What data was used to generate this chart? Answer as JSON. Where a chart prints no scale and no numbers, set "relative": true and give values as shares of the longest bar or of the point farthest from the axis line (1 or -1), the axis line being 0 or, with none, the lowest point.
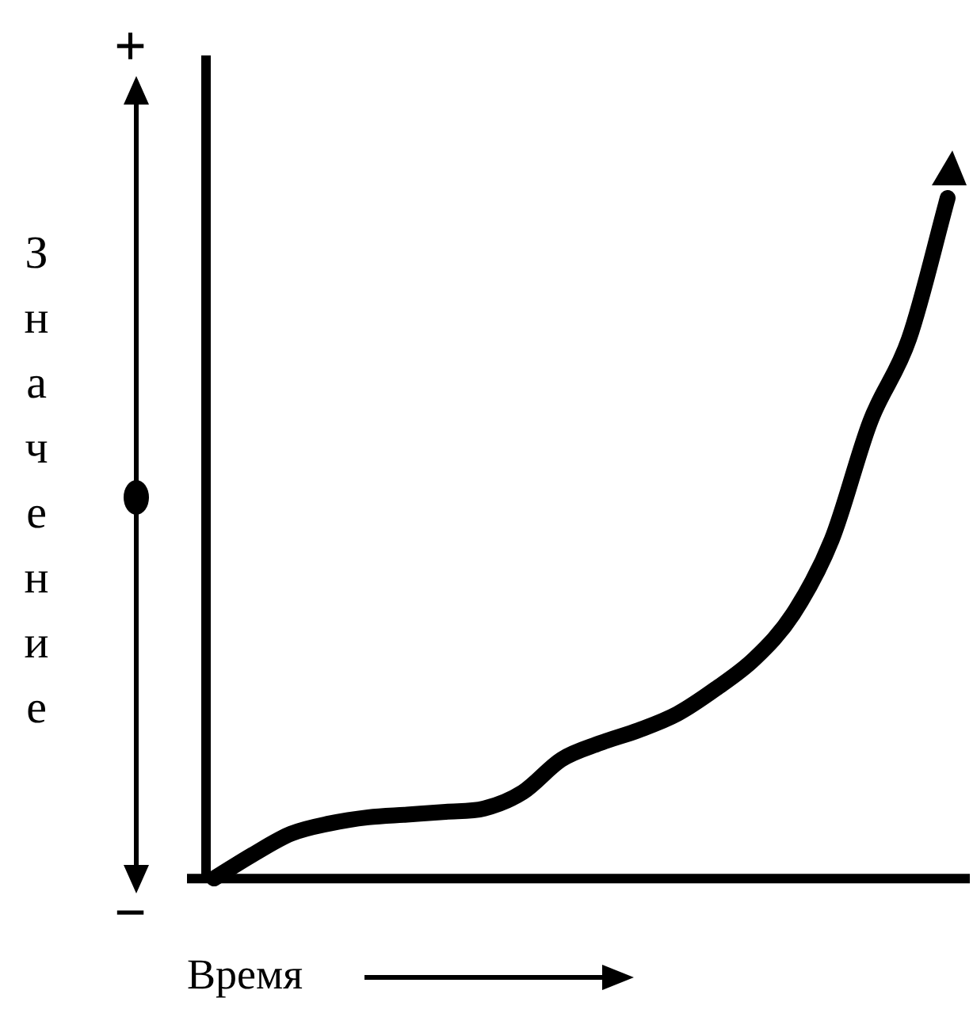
{
  "chart_data": {
    "type": "line",
    "relative": true,
    "xlabel": "Время",
    "ylabel": "Значение",
    "annotations": [
      "+",
      "−"
    ],
    "categories": [
      null,
      null,
      null,
      null,
      null,
      null,
      null,
      null,
      null,
      null,
      null,
      null,
      null,
      null,
      null,
      null,
      null,
      null,
      null,
      null
    ],
    "series": [
      {
        "color": "#000000",
        "values": [
          0,
          0.035,
          0.066,
          0.081,
          0.09,
          0.094,
          0.098,
          0.103,
          0.127,
          0.175,
          0.199,
          0.218,
          0.242,
          0.279,
          0.323,
          0.389,
          0.498,
          0.672,
          0.793,
          1
        ]
      }
    ],
    "legend": false,
    "marker": "none",
    "line_style": "solid"
  }
}
